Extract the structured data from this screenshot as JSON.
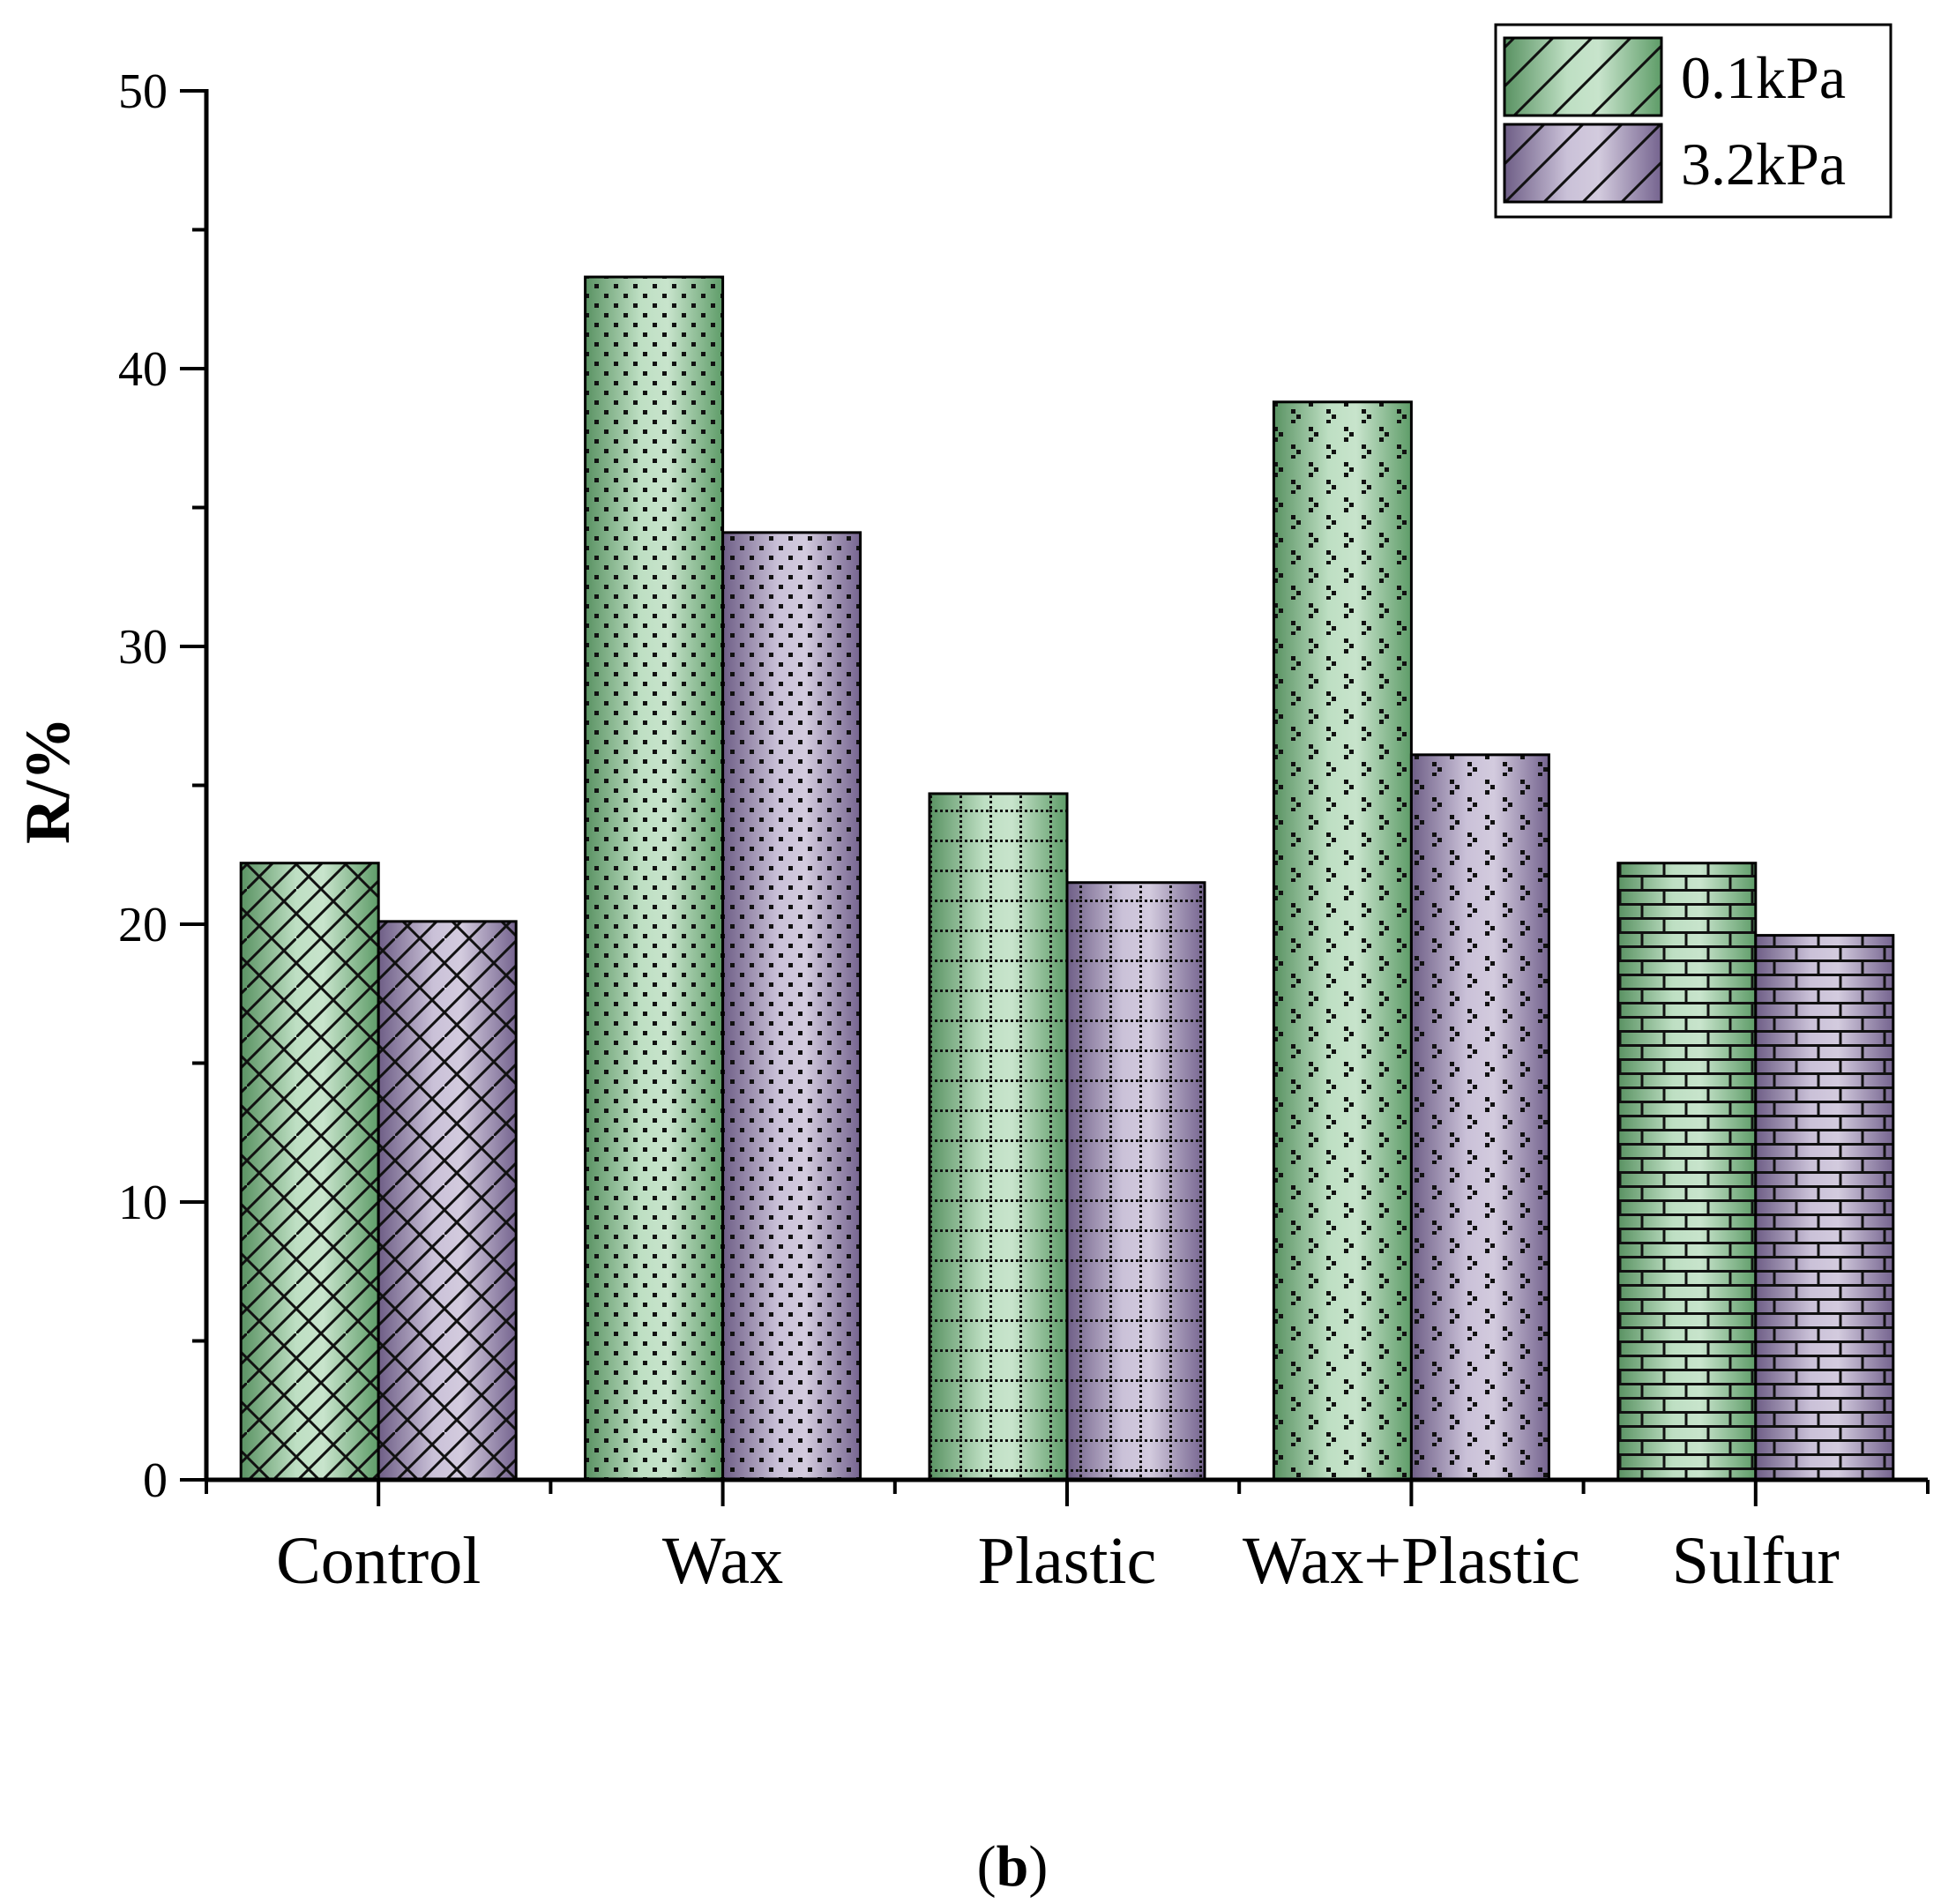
{
  "chart_data": {
    "type": "bar",
    "title": "",
    "xlabel": "",
    "ylabel": "R/%",
    "ylim": [
      0,
      50
    ],
    "yticks": [
      0,
      10,
      20,
      30,
      40,
      50
    ],
    "grid": false,
    "legend_position": "top-right",
    "categories": [
      "Control",
      "Wax",
      "Plastic",
      "Wax+Plastic",
      "Sulfur"
    ],
    "series": [
      {
        "name": "0.1kPa",
        "values": [
          22.2,
          43.3,
          24.7,
          38.8,
          22.2
        ],
        "color": "#6fb77a"
      },
      {
        "name": "3.2kPa",
        "values": [
          20.1,
          34.1,
          21.5,
          26.1,
          19.6
        ],
        "color": "#8a76a8"
      }
    ],
    "patterns": [
      "diagonal-grid",
      "dots",
      "grid",
      "cross-dots",
      "brick"
    ]
  },
  "caption": {
    "open": "(",
    "letter": "b",
    "close": ")"
  }
}
